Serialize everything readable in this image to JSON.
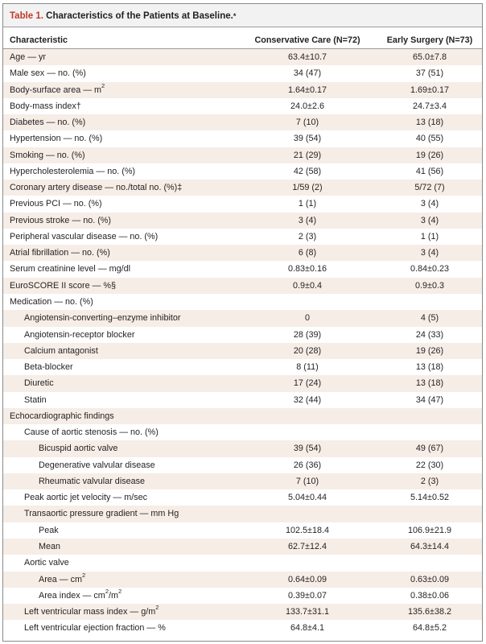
{
  "title": {
    "label": "Table 1.",
    "text": " Characteristics of the Patients at Baseline.",
    "footnote_mark": "*"
  },
  "columns": {
    "characteristic": "Characteristic",
    "conservative": "Conservative Care (N=72)",
    "surgery": "Early Surgery (N=73)"
  },
  "rows": [
    {
      "label": "Age — yr",
      "indent": 0,
      "c1": "63.4±10.7",
      "c2": "65.0±7.8"
    },
    {
      "label": "Male sex — no. (%)",
      "indent": 0,
      "c1": "34 (47)",
      "c2": "37 (51)"
    },
    {
      "label": "Body-surface area — m",
      "sup": "2",
      "indent": 0,
      "c1": "1.64±0.17",
      "c2": "1.69±0.17"
    },
    {
      "label": "Body-mass index†",
      "indent": 0,
      "c1": "24.0±2.6",
      "c2": "24.7±3.4"
    },
    {
      "label": "Diabetes — no. (%)",
      "indent": 0,
      "c1": "7 (10)",
      "c2": "13 (18)"
    },
    {
      "label": "Hypertension — no. (%)",
      "indent": 0,
      "c1": "39 (54)",
      "c2": "40 (55)"
    },
    {
      "label": "Smoking — no. (%)",
      "indent": 0,
      "c1": "21 (29)",
      "c2": "19 (26)"
    },
    {
      "label": "Hypercholesterolemia — no. (%)",
      "indent": 0,
      "c1": "42 (58)",
      "c2": "41 (56)"
    },
    {
      "label": "Coronary artery disease — no./total no. (%)‡",
      "indent": 0,
      "c1": "1/59 (2)",
      "c2": "5/72 (7)"
    },
    {
      "label": "Previous PCI — no. (%)",
      "indent": 0,
      "c1": "1 (1)",
      "c2": "3 (4)"
    },
    {
      "label": "Previous stroke — no. (%)",
      "indent": 0,
      "c1": "3 (4)",
      "c2": "3 (4)"
    },
    {
      "label": "Peripheral vascular disease — no. (%)",
      "indent": 0,
      "c1": "2 (3)",
      "c2": "1 (1)"
    },
    {
      "label": "Atrial fibrillation — no. (%)",
      "indent": 0,
      "c1": "6 (8)",
      "c2": "3 (4)"
    },
    {
      "label": "Serum creatinine level — mg/dl",
      "indent": 0,
      "c1": "0.83±0.16",
      "c2": "0.84±0.23"
    },
    {
      "label": "EuroSCORE II score — %§",
      "indent": 0,
      "c1": "0.9±0.4",
      "c2": "0.9±0.3"
    },
    {
      "label": "Medication — no. (%)",
      "indent": 0,
      "c1": "",
      "c2": ""
    },
    {
      "label": "Angiotensin-converting–enzyme inhibitor",
      "indent": 1,
      "c1": "0",
      "c2": "4 (5)"
    },
    {
      "label": "Angiotensin-receptor blocker",
      "indent": 1,
      "c1": "28 (39)",
      "c2": "24 (33)"
    },
    {
      "label": "Calcium antagonist",
      "indent": 1,
      "c1": "20 (28)",
      "c2": "19 (26)"
    },
    {
      "label": "Beta-blocker",
      "indent": 1,
      "c1": "8 (11)",
      "c2": "13 (18)"
    },
    {
      "label": "Diuretic",
      "indent": 1,
      "c1": "17 (24)",
      "c2": "13 (18)"
    },
    {
      "label": "Statin",
      "indent": 1,
      "c1": "32 (44)",
      "c2": "34 (47)"
    },
    {
      "label": "Echocardiographic findings",
      "indent": 0,
      "c1": "",
      "c2": ""
    },
    {
      "label": "Cause of aortic stenosis — no. (%)",
      "indent": 1,
      "c1": "",
      "c2": ""
    },
    {
      "label": "Bicuspid aortic valve",
      "indent": 2,
      "c1": "39 (54)",
      "c2": "49 (67)"
    },
    {
      "label": "Degenerative valvular disease",
      "indent": 2,
      "c1": "26 (36)",
      "c2": "22 (30)"
    },
    {
      "label": "Rheumatic valvular disease",
      "indent": 2,
      "c1": "7 (10)",
      "c2": "2 (3)"
    },
    {
      "label": "Peak aortic jet velocity — m/sec",
      "indent": 1,
      "c1": "5.04±0.44",
      "c2": "5.14±0.52"
    },
    {
      "label": "Transaortic pressure gradient — mm Hg",
      "indent": 1,
      "c1": "",
      "c2": ""
    },
    {
      "label": "Peak",
      "indent": 2,
      "c1": "102.5±18.4",
      "c2": "106.9±21.9"
    },
    {
      "label": "Mean",
      "indent": 2,
      "c1": "62.7±12.4",
      "c2": "64.3±14.4"
    },
    {
      "label": "Aortic valve",
      "indent": 1,
      "c1": "",
      "c2": ""
    },
    {
      "label": "Area — cm",
      "sup": "2",
      "indent": 2,
      "c1": "0.64±0.09",
      "c2": "0.63±0.09"
    },
    {
      "label": "Area index — cm",
      "sup": "2",
      "suffix": "/m",
      "sup2": "2",
      "indent": 2,
      "c1": "0.39±0.07",
      "c2": "0.38±0.06"
    },
    {
      "label": "Left ventricular mass index — g/m",
      "sup": "2",
      "indent": 1,
      "c1": "133.7±31.1",
      "c2": "135.6±38.2"
    },
    {
      "label": "Left ventricular ejection fraction — %",
      "indent": 1,
      "c1": "64.8±4.1",
      "c2": "64.8±5.2"
    }
  ]
}
